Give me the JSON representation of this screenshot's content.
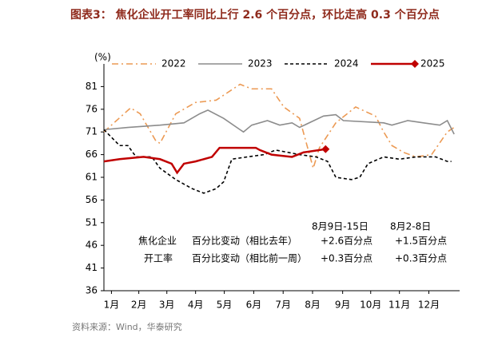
{
  "chart_data": {
    "type": "line",
    "title": "图表3：  焦化企业开工率同比上行 2.6 个百分点，环比走高 0.3 个百分点",
    "y_label": "(%)",
    "source": "资料来源：Wind，华泰研究",
    "xlim": [
      1,
      53
    ],
    "xticks": [
      {
        "value": 2.1,
        "label": "1月"
      },
      {
        "value": 6.1,
        "label": "2月"
      },
      {
        "value": 10.2,
        "label": "3月"
      },
      {
        "value": 14.4,
        "label": "4月"
      },
      {
        "value": 18.6,
        "label": "5月"
      },
      {
        "value": 22.9,
        "label": "6月"
      },
      {
        "value": 27.2,
        "label": "7月"
      },
      {
        "value": 31.5,
        "label": "8月"
      },
      {
        "value": 35.9,
        "label": "9月"
      },
      {
        "value": 40.0,
        "label": "10月"
      },
      {
        "value": 44.2,
        "label": "11月"
      },
      {
        "value": 48.5,
        "label": "12月"
      }
    ],
    "ylim": [
      36,
      86
    ],
    "yticks": [
      36,
      41,
      46,
      51,
      56,
      61,
      66,
      71,
      76,
      81
    ],
    "series": [
      {
        "name": "2022",
        "color": "#ec9a54",
        "dash": "dashdot",
        "x": [
          1.0,
          4.9,
          6.3,
          8.6,
          9.2,
          11.5,
          14.4,
          17.4,
          20.9,
          22.6,
          25.5,
          27.3,
          29.6,
          31.6,
          32.5,
          34.9,
          37.8,
          40.7,
          41.9,
          43.1,
          44.8,
          46.6,
          48.9,
          51.2,
          52.2
        ],
        "values": [
          71,
          76.3,
          75,
          69,
          68.5,
          75,
          77.5,
          78,
          81.5,
          80.5,
          80.5,
          76.5,
          74,
          63,
          67.5,
          73,
          76.5,
          74.5,
          71,
          68,
          66.5,
          65.5,
          66,
          71,
          72
        ]
      },
      {
        "name": "2023",
        "color": "#8c8c8c",
        "dash": "solid",
        "x": [
          1.0,
          4.5,
          9.2,
          12.7,
          15.0,
          16.2,
          18.5,
          20.9,
          21.4,
          22.6,
          24.9,
          26.7,
          28.5,
          29.6,
          33.1,
          34.9,
          36.0,
          41.9,
          43.1,
          45.4,
          47.7,
          50.1,
          51.2,
          52.2
        ],
        "values": [
          71.5,
          72,
          72.5,
          73,
          75,
          75.8,
          74,
          71.5,
          71,
          72.5,
          73.5,
          72.5,
          73,
          72,
          74.5,
          74.8,
          73.5,
          73,
          72.5,
          73.5,
          73,
          72.5,
          73.5,
          70.5
        ]
      },
      {
        "name": "2024",
        "color": "#000000",
        "dash": "dashed",
        "x": [
          1.0,
          3.3,
          4.5,
          5.7,
          8.0,
          9.2,
          11.5,
          13.9,
          15.6,
          17.4,
          18.5,
          19.7,
          22.0,
          24.4,
          26.1,
          27.9,
          29.6,
          32.0,
          33.7,
          34.9,
          37.2,
          38.4,
          39.6,
          41.9,
          44.2,
          46.6,
          49.5,
          51.2,
          51.8
        ],
        "values": [
          71.5,
          68,
          68,
          65.5,
          65.5,
          63,
          60.5,
          58.5,
          57.5,
          58.5,
          60,
          65,
          65.5,
          66,
          67,
          66.5,
          66,
          65.5,
          64.5,
          61,
          60.5,
          61,
          64,
          65.5,
          65,
          65.5,
          65.5,
          64.5,
          64.5
        ]
      },
      {
        "name": "2025",
        "color": "#c00000",
        "dash": "solid",
        "marker": "diamond",
        "x": [
          1.0,
          3.3,
          6.8,
          9.2,
          10.9,
          11.7,
          12.7,
          14.4,
          16.8,
          17.9,
          20.3,
          23.2,
          23.8,
          25.5,
          28.5,
          30.2,
          33.4
        ],
        "values": [
          64.5,
          65,
          65.5,
          65,
          64,
          62,
          64,
          64.5,
          65.5,
          67.5,
          67.5,
          67.5,
          67,
          66,
          65.5,
          66.5,
          67.2
        ]
      }
    ],
    "annotation_table": {
      "headers": [
        "8月9日-15日",
        "8月2-8日"
      ],
      "rows": [
        {
          "label": "焦化企业",
          "metric": "百分比变动（相比去年）",
          "cells": [
            "+2.6百分点",
            "+1.5百分点"
          ]
        },
        {
          "label": "开工率",
          "metric": "百分比变动（相比前一周）",
          "cells": [
            "+0.3百分点",
            "+0.3百分点"
          ]
        }
      ]
    }
  }
}
